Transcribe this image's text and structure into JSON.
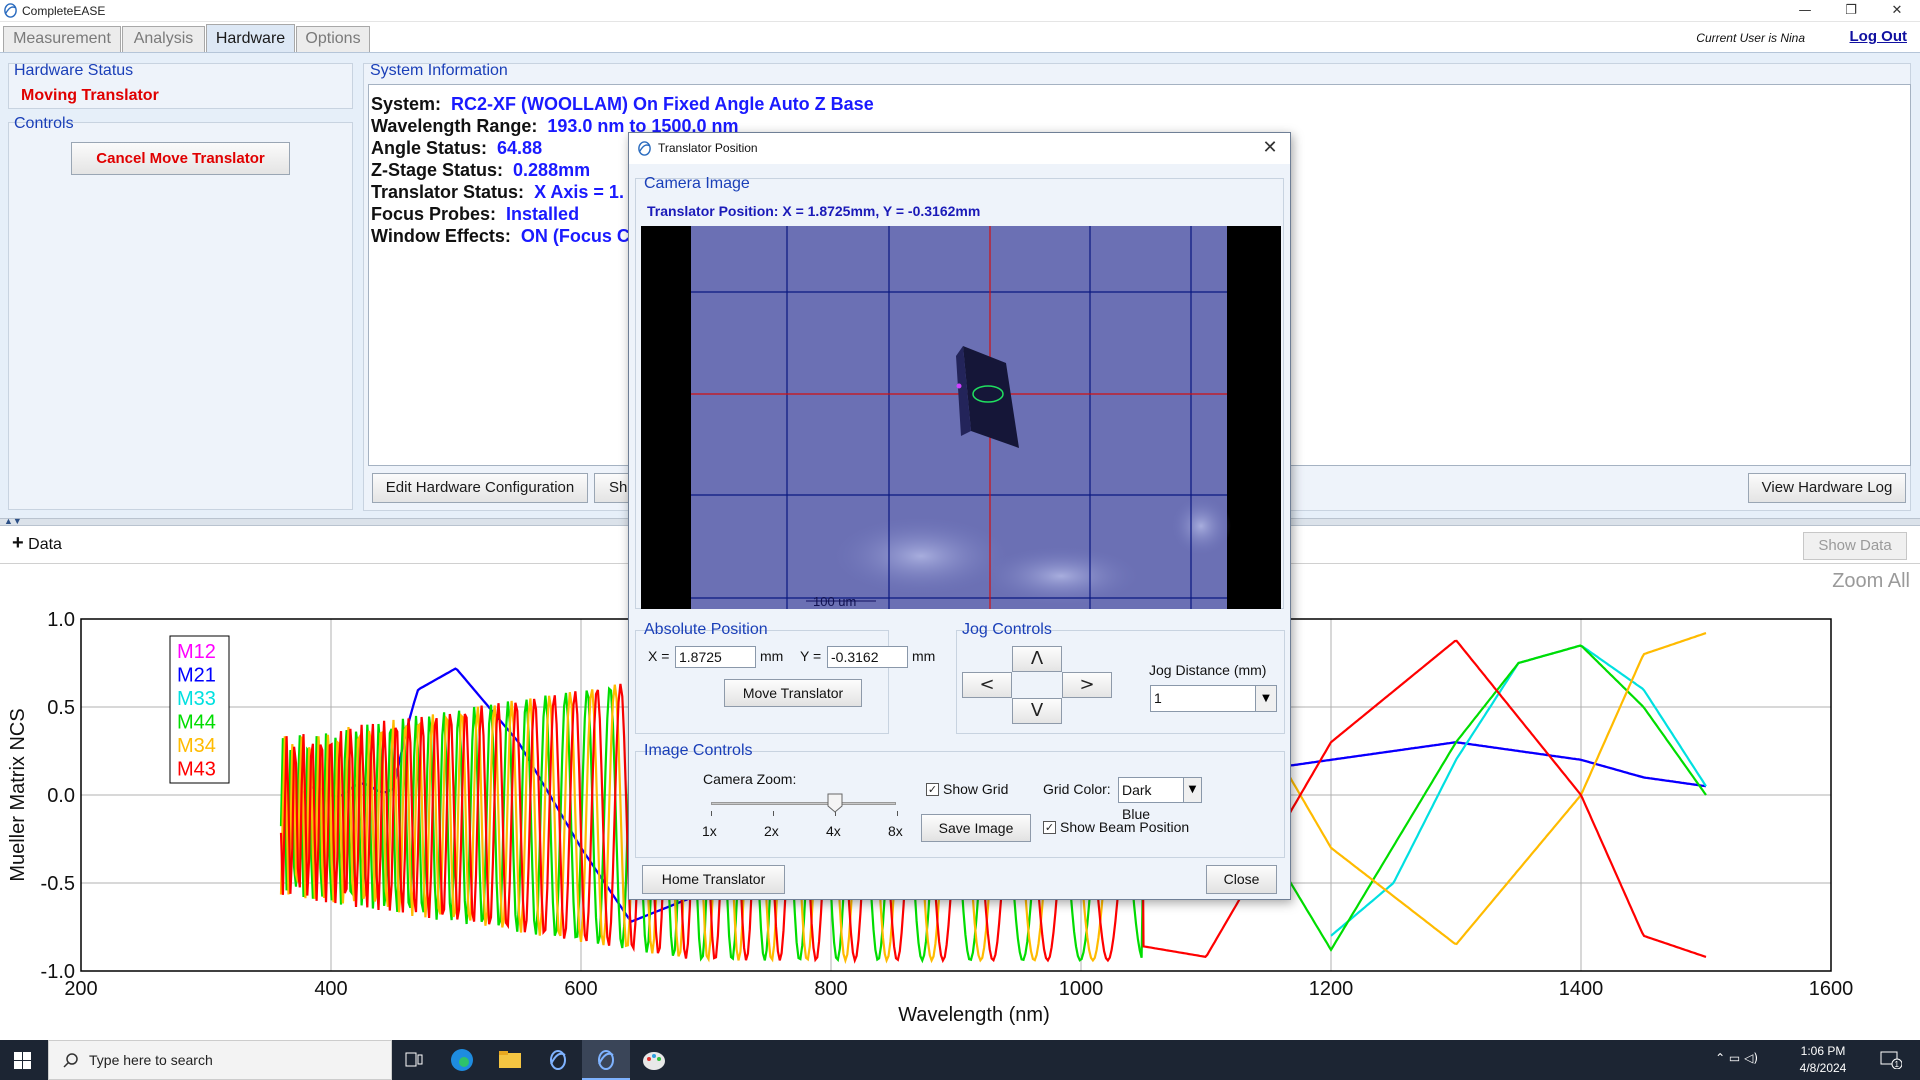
{
  "app": {
    "title": "CompleteEASE",
    "icon": "completeease-logo-icon"
  },
  "tabs": [
    {
      "label": "Measurement",
      "active": false
    },
    {
      "label": "Analysis",
      "active": false
    },
    {
      "label": "Hardware",
      "active": true
    },
    {
      "label": "Options",
      "active": false
    }
  ],
  "user": {
    "current_user": "Current User is Nina",
    "logout": "Log Out"
  },
  "hardware_status": {
    "label": "Hardware Status",
    "value": "Moving Translator"
  },
  "controls": {
    "label": "Controls",
    "cancel_button": "Cancel Move Translator"
  },
  "system_info": {
    "label": "System Information",
    "lines": [
      {
        "key": "System:",
        "value": "RC2-XF (WOOLLAM) On Fixed Angle Auto Z Base"
      },
      {
        "key": "Wavelength Range:",
        "value": "193.0 nm to 1500.0 nm"
      },
      {
        "key": "Angle Status:",
        "value": "64.88"
      },
      {
        "key": "Z-Stage Status:",
        "value": "0.288mm"
      },
      {
        "key": "Translator Status:",
        "value": "X Axis = 1."
      },
      {
        "key": "Focus Probes:",
        "value": "Installed"
      },
      {
        "key": "Window Effects:",
        "value": "ON (Focus C"
      }
    ],
    "edit_button": "Edit Hardware Configuration",
    "partial_button": "Sh",
    "view_log_button": "View Hardware Log"
  },
  "data_bar": {
    "toggle": "Data",
    "show_data": "Show Data",
    "zoom_all": "Zoom All"
  },
  "dialog": {
    "title": "Translator Position",
    "camera_label": "Camera Image",
    "translator_position": "Translator Position:  X = 1.8725mm, Y = -0.3162mm",
    "scale_bar_label": "100 um",
    "absolute_position": {
      "label": "Absolute Position",
      "x_label": "X =",
      "x_value": "1.8725",
      "y_label": "Y =",
      "y_value": "-0.3162",
      "unit": "mm",
      "move_button": "Move Translator"
    },
    "jog_controls": {
      "label": "Jog Controls",
      "up": "Λ",
      "down": "V",
      "left": "<",
      "right": ">",
      "distance_label": "Jog Distance (mm)",
      "distance_value": "1"
    },
    "image_controls": {
      "label": "Image Controls",
      "zoom_label": "Camera Zoom:",
      "zoom_ticks": [
        "1x",
        "2x",
        "4x",
        "8x"
      ],
      "zoom_value": "4x",
      "show_grid": {
        "label": "Show Grid",
        "checked": true
      },
      "grid_color_label": "Grid Color:",
      "grid_color_value": "Dark Blue",
      "save_image": "Save Image",
      "show_beam": {
        "label": "Show Beam Position",
        "checked": true
      }
    },
    "home_button": "Home Translator",
    "close_button": "Close"
  },
  "chart_data": {
    "type": "line",
    "title": "",
    "xlabel": "Wavelength (nm)",
    "ylabel": "Mueller Matrix NCS",
    "xlim": [
      200,
      1600
    ],
    "ylim": [
      -1.0,
      1.0
    ],
    "xticks": [
      "200",
      "400",
      "600",
      "800",
      "1000",
      "1200",
      "1400",
      "1600"
    ],
    "yticks": [
      "1.0",
      "0.5",
      "0.0",
      "-0.5",
      "-1.0"
    ],
    "grid": true,
    "legend_position": "top-left",
    "series": [
      {
        "name": "M12",
        "color": "#ff00ff",
        "x": [
          360,
          400,
          450,
          470,
          500,
          550,
          600,
          640,
          700,
          800,
          900,
          1000,
          1100,
          1200,
          1300,
          1400,
          1450,
          1500
        ],
        "y": [
          0.0,
          0.02,
          0.05,
          0.6,
          0.72,
          0.3,
          -0.3,
          -0.72,
          -0.55,
          -0.25,
          -0.05,
          0.05,
          0.1,
          0.2,
          0.3,
          0.2,
          0.1,
          0.05
        ]
      },
      {
        "name": "M21",
        "color": "#0000ff",
        "x": [
          360,
          400,
          450,
          470,
          500,
          550,
          600,
          640,
          700,
          800,
          900,
          1000,
          1100,
          1200,
          1300,
          1400,
          1450,
          1500
        ],
        "y": [
          0.0,
          0.02,
          0.05,
          0.6,
          0.72,
          0.3,
          -0.3,
          -0.72,
          -0.55,
          -0.25,
          -0.05,
          0.05,
          0.1,
          0.2,
          0.3,
          0.2,
          0.1,
          0.05
        ]
      },
      {
        "name": "M33",
        "color": "#00e0e0",
        "x": [
          1200,
          1250,
          1300,
          1350,
          1400,
          1450,
          1500
        ],
        "y": [
          -0.8,
          -0.5,
          0.2,
          0.75,
          0.85,
          0.6,
          0.05
        ]
      },
      {
        "name": "M44",
        "color": "#00dd00",
        "x": [
          360,
          1000,
          1100,
          1200,
          1300,
          1350,
          1400,
          1450,
          1500
        ],
        "y": [
          0.0,
          -0.8,
          0.3,
          -0.88,
          0.3,
          0.75,
          0.85,
          0.5,
          0.0
        ]
      },
      {
        "name": "M34",
        "color": "#ffbb00",
        "x": [
          360,
          1000,
          1100,
          1200,
          1300,
          1400,
          1450,
          1500
        ],
        "y": [
          0.0,
          -0.8,
          0.92,
          -0.3,
          -0.85,
          0.0,
          0.8,
          0.92
        ]
      },
      {
        "name": "M43",
        "color": "#ff0000",
        "x": [
          360,
          1000,
          1100,
          1200,
          1300,
          1400,
          1450,
          1500
        ],
        "y": [
          0.0,
          -0.8,
          -0.92,
          0.3,
          0.88,
          0.0,
          -0.8,
          -0.92
        ]
      }
    ]
  }
}
